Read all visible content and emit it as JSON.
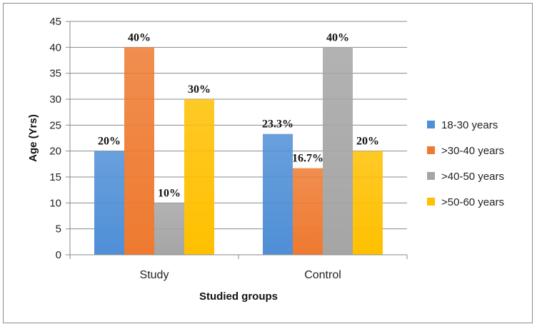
{
  "chart_data": {
    "type": "bar",
    "title": "",
    "xlabel": "Studied groups",
    "ylabel": "Age (Yrs)",
    "ylim": [
      0,
      45
    ],
    "yticks": [
      0,
      5,
      10,
      15,
      20,
      25,
      30,
      35,
      40,
      45
    ],
    "categories": [
      "Study",
      "Control"
    ],
    "series": [
      {
        "name": "18-30 years",
        "color": "#4f8fd6",
        "values": [
          20,
          23.3
        ],
        "labels": [
          "20%",
          "23.3%"
        ]
      },
      {
        "name": ">30-40 years",
        "color": "#ee7a30",
        "values": [
          40,
          16.7
        ],
        "labels": [
          "40%",
          "16.7%"
        ]
      },
      {
        "name": ">40-50 years",
        "color": "#a5a5a5",
        "values": [
          10,
          40
        ],
        "labels": [
          "10%",
          "40%"
        ]
      },
      {
        "name": ">50-60 years",
        "color": "#ffc000",
        "values": [
          30,
          20
        ],
        "labels": [
          "30%",
          "20%"
        ]
      }
    ],
    "grid": true,
    "legend": "right"
  }
}
